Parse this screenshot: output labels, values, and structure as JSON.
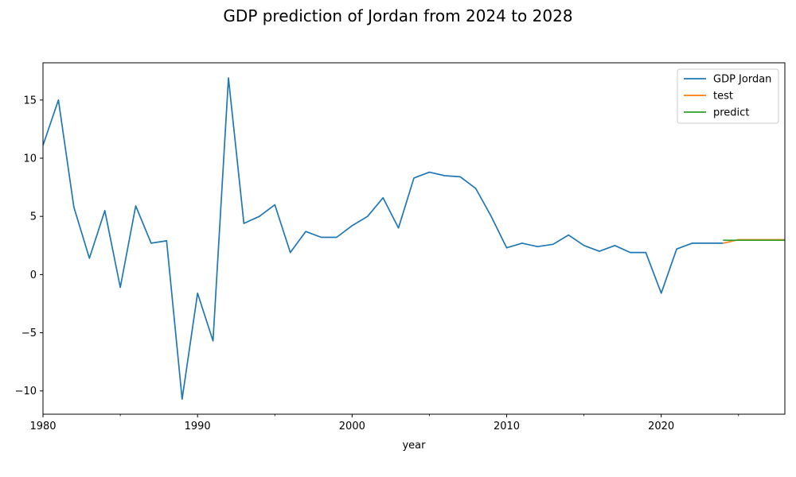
{
  "chart_data": {
    "type": "line",
    "title": "GDP prediction of Jordan from 2024 to 2028",
    "xlabel": "year",
    "ylabel": "",
    "xlim": [
      1980,
      2028
    ],
    "ylim": [
      -12,
      18.2
    ],
    "grid": false,
    "legend_position": "top-right",
    "x_ticks": [
      1980,
      1990,
      2000,
      2010,
      2020
    ],
    "x_minor_ticks": [
      1985,
      1995,
      2005,
      2015,
      2025
    ],
    "y_ticks": [
      -10,
      -5,
      0,
      5,
      10,
      15
    ],
    "series": [
      {
        "name": "GDP Jordan",
        "color": "#1f77b4",
        "x": [
          1980,
          1981,
          1982,
          1983,
          1984,
          1985,
          1986,
          1987,
          1988,
          1989,
          1990,
          1991,
          1992,
          1993,
          1994,
          1995,
          1996,
          1997,
          1998,
          1999,
          2000,
          2001,
          2002,
          2003,
          2004,
          2005,
          2006,
          2007,
          2008,
          2009,
          2010,
          2011,
          2012,
          2013,
          2014,
          2015,
          2016,
          2017,
          2018,
          2019,
          2020,
          2021,
          2022,
          2023,
          2024
        ],
        "values": [
          11.1,
          15.0,
          5.8,
          1.4,
          5.5,
          -1.1,
          5.9,
          2.7,
          2.9,
          -10.7,
          -1.6,
          -5.7,
          16.9,
          4.4,
          5.0,
          6.0,
          1.9,
          3.7,
          3.2,
          3.2,
          4.2,
          5.0,
          6.6,
          4.0,
          8.3,
          8.8,
          8.5,
          8.4,
          7.4,
          5.0,
          2.3,
          2.7,
          2.4,
          2.6,
          3.4,
          2.5,
          2.0,
          2.5,
          1.9,
          1.9,
          -1.6,
          2.2,
          2.7,
          2.7,
          2.7
        ]
      },
      {
        "name": "test",
        "color": "#ff7f0e",
        "x": [
          2024,
          2025,
          2026,
          2027,
          2028
        ],
        "values": [
          2.7,
          3.0,
          3.0,
          3.0,
          3.0
        ]
      },
      {
        "name": "predict",
        "color": "#2ca02c",
        "x": [
          2024,
          2025,
          2026,
          2027,
          2028
        ],
        "values": [
          2.95,
          2.95,
          2.95,
          2.95,
          2.95
        ]
      }
    ]
  }
}
